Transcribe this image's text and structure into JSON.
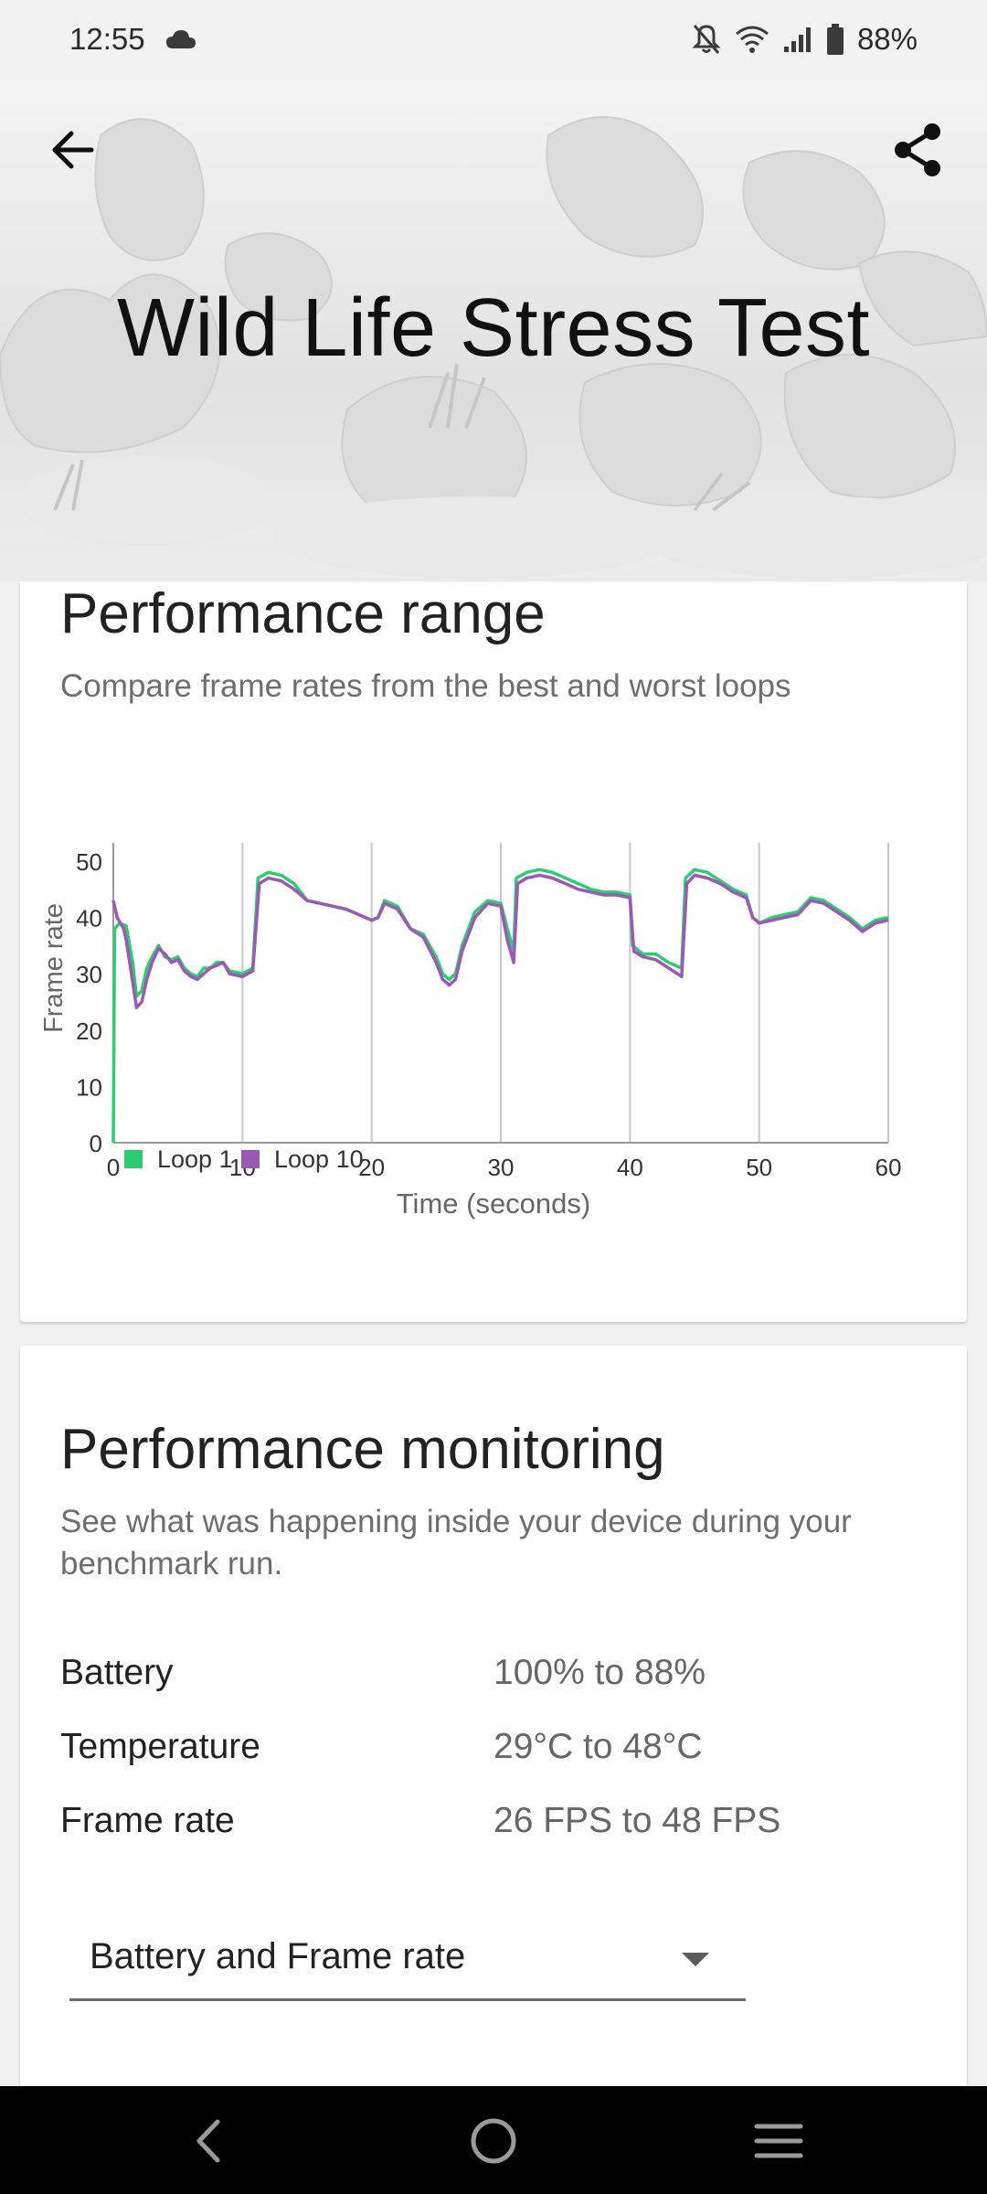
{
  "status_bar": {
    "time": "12:55",
    "battery_percent": "88%",
    "icons": [
      "cloud-icon",
      "notifications-off-icon",
      "wifi-icon",
      "signal-icon",
      "battery-icon"
    ]
  },
  "header": {
    "title": "Wild Life Stress Test",
    "back_icon": "arrow-left-icon",
    "share_icon": "share-icon"
  },
  "performance_range": {
    "title": "Performance range",
    "subtitle": "Compare frame rates from the best and worst loops"
  },
  "chart_data": {
    "type": "line",
    "ylabel": "Frame rate",
    "xlabel": "Time (seconds)",
    "xlim": [
      0,
      60
    ],
    "ylim": [
      0,
      50
    ],
    "x_ticks": [
      0,
      10,
      20,
      30,
      40,
      50,
      60
    ],
    "y_ticks": [
      0,
      10,
      20,
      30,
      40,
      50
    ],
    "grid": "vertical",
    "legend_placement": "bottom-left",
    "series": [
      {
        "name": "Loop 1",
        "color": "#2ecc71",
        "points": [
          [
            0,
            0
          ],
          [
            0.1,
            38
          ],
          [
            0.5,
            39
          ],
          [
            1,
            38.5
          ],
          [
            1.5,
            32
          ],
          [
            1.8,
            26
          ],
          [
            2.2,
            27
          ],
          [
            2.6,
            31
          ],
          [
            3,
            33
          ],
          [
            3.5,
            35
          ],
          [
            4,
            33
          ],
          [
            4.5,
            32.5
          ],
          [
            5,
            33
          ],
          [
            5.5,
            31
          ],
          [
            6,
            30
          ],
          [
            6.5,
            29.5
          ],
          [
            7,
            31
          ],
          [
            7.5,
            31
          ],
          [
            8,
            32
          ],
          [
            8.5,
            32
          ],
          [
            9,
            30.5
          ],
          [
            10,
            30
          ],
          [
            10.8,
            31
          ],
          [
            11.2,
            47
          ],
          [
            12,
            48
          ],
          [
            13,
            47.5
          ],
          [
            14,
            46
          ],
          [
            15,
            43
          ],
          [
            16,
            42.5
          ],
          [
            17,
            42
          ],
          [
            18,
            41.5
          ],
          [
            19,
            40.5
          ],
          [
            20,
            39.5
          ],
          [
            20.5,
            40
          ],
          [
            21,
            43
          ],
          [
            22,
            42
          ],
          [
            23,
            38
          ],
          [
            24,
            37
          ],
          [
            25,
            33
          ],
          [
            25.5,
            30
          ],
          [
            26,
            29
          ],
          [
            26.5,
            30
          ],
          [
            27,
            35
          ],
          [
            28,
            41
          ],
          [
            29,
            43
          ],
          [
            30,
            42.5
          ],
          [
            30.5,
            38
          ],
          [
            31,
            34
          ],
          [
            31.2,
            47
          ],
          [
            32,
            48
          ],
          [
            33,
            48.5
          ],
          [
            34,
            48
          ],
          [
            35,
            47
          ],
          [
            36,
            46
          ],
          [
            37,
            45
          ],
          [
            38,
            44.5
          ],
          [
            39,
            44.5
          ],
          [
            40,
            44
          ],
          [
            40.2,
            35
          ],
          [
            41,
            33.5
          ],
          [
            42,
            33.5
          ],
          [
            43,
            32
          ],
          [
            44,
            31
          ],
          [
            44.3,
            47
          ],
          [
            45,
            48.5
          ],
          [
            46,
            48
          ],
          [
            47,
            46.5
          ],
          [
            48,
            45
          ],
          [
            49,
            44
          ],
          [
            49.5,
            40
          ],
          [
            50,
            39
          ],
          [
            51,
            40
          ],
          [
            52,
            40.5
          ],
          [
            53,
            41
          ],
          [
            54,
            43.5
          ],
          [
            55,
            43
          ],
          [
            56,
            41.5
          ],
          [
            57,
            40
          ],
          [
            58,
            38
          ],
          [
            59,
            39.5
          ],
          [
            60,
            40
          ]
        ]
      },
      {
        "name": "Loop 10",
        "color": "#9b59b6",
        "points": [
          [
            0,
            43
          ],
          [
            0.3,
            40
          ],
          [
            0.8,
            38
          ],
          [
            1,
            36
          ],
          [
            1.4,
            30
          ],
          [
            1.8,
            24
          ],
          [
            2.2,
            25
          ],
          [
            2.6,
            29
          ],
          [
            3,
            32
          ],
          [
            3.5,
            34.5
          ],
          [
            4,
            33.5
          ],
          [
            4.5,
            32
          ],
          [
            5,
            32.5
          ],
          [
            5.5,
            30.5
          ],
          [
            6,
            29.5
          ],
          [
            6.5,
            29
          ],
          [
            7,
            30
          ],
          [
            7.5,
            31
          ],
          [
            8,
            31.5
          ],
          [
            8.5,
            32
          ],
          [
            9,
            30
          ],
          [
            10,
            29.5
          ],
          [
            10.8,
            30.5
          ],
          [
            11.3,
            46
          ],
          [
            12,
            47
          ],
          [
            13,
            46.5
          ],
          [
            14,
            45
          ],
          [
            15,
            43
          ],
          [
            16,
            42.5
          ],
          [
            17,
            42
          ],
          [
            18,
            41.5
          ],
          [
            19,
            40.5
          ],
          [
            20,
            39.5
          ],
          [
            20.5,
            40
          ],
          [
            21,
            42.5
          ],
          [
            22,
            41.5
          ],
          [
            23,
            38
          ],
          [
            24,
            36.5
          ],
          [
            25,
            32
          ],
          [
            25.5,
            29
          ],
          [
            26,
            28
          ],
          [
            26.5,
            29
          ],
          [
            27,
            34
          ],
          [
            28,
            40
          ],
          [
            29,
            42.5
          ],
          [
            30,
            42
          ],
          [
            30.5,
            36
          ],
          [
            31,
            32
          ],
          [
            31.3,
            46
          ],
          [
            32,
            47
          ],
          [
            33,
            47.5
          ],
          [
            34,
            47
          ],
          [
            35,
            46
          ],
          [
            36,
            45
          ],
          [
            37,
            44.5
          ],
          [
            38,
            44
          ],
          [
            39,
            44
          ],
          [
            40,
            43.5
          ],
          [
            40.3,
            34
          ],
          [
            41,
            33
          ],
          [
            42,
            32.5
          ],
          [
            43,
            31
          ],
          [
            44,
            29.5
          ],
          [
            44.4,
            46
          ],
          [
            45,
            47.5
          ],
          [
            46,
            47
          ],
          [
            47,
            46
          ],
          [
            48,
            44.5
          ],
          [
            49,
            43.5
          ],
          [
            49.5,
            40
          ],
          [
            50,
            39
          ],
          [
            51,
            39.5
          ],
          [
            52,
            40
          ],
          [
            53,
            40.5
          ],
          [
            54,
            43
          ],
          [
            55,
            42.5
          ],
          [
            56,
            41
          ],
          [
            57,
            39.5
          ],
          [
            58,
            37.5
          ],
          [
            59,
            39
          ],
          [
            60,
            39.5
          ]
        ]
      }
    ]
  },
  "performance_monitoring": {
    "title": "Performance monitoring",
    "subtitle": "See what was happening inside your device during your benchmark run.",
    "stats": [
      {
        "label": "Battery",
        "value": "100% to 88%"
      },
      {
        "label": "Temperature",
        "value": "29°C to 48°C"
      },
      {
        "label": "Frame rate",
        "value": "26 FPS to 48 FPS"
      }
    ],
    "dropdown": {
      "selected": "Battery and Frame rate",
      "icon": "dropdown-arrow-icon"
    }
  },
  "nav_bar": {
    "buttons": [
      "nav-back-icon",
      "nav-home-icon",
      "nav-recents-icon"
    ]
  }
}
